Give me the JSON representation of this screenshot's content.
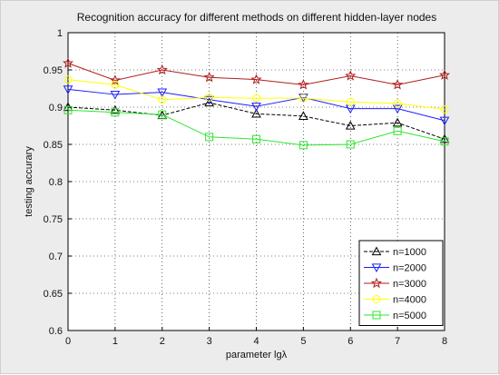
{
  "chart_data": {
    "type": "line",
    "title": "Recognition accuracy for different methods on different hidden-layer nodes",
    "xlabel": "parameter lgλ",
    "ylabel": "testing accurary",
    "xlim": [
      0,
      8
    ],
    "ylim": [
      0.6,
      1.0
    ],
    "x": [
      0,
      1,
      2,
      3,
      4,
      5,
      6,
      7,
      8
    ],
    "xticks": [
      "0",
      "1",
      "2",
      "3",
      "4",
      "5",
      "6",
      "7",
      "8"
    ],
    "yticks": [
      "0.6",
      "0.65",
      "0.7",
      "0.75",
      "0.8",
      "0.85",
      "0.9",
      "0.95",
      "1"
    ],
    "grid": true,
    "legend_position": "bottom-right",
    "series": [
      {
        "name": "n=1000",
        "values": [
          0.9,
          0.896,
          0.889,
          0.906,
          0.891,
          0.888,
          0.875,
          0.879,
          0.857
        ],
        "color": "#000000",
        "dash": true,
        "marker": "triangle-up"
      },
      {
        "name": "n=2000",
        "values": [
          0.924,
          0.917,
          0.92,
          0.91,
          0.901,
          0.913,
          0.898,
          0.898,
          0.882
        ],
        "color": "#1c1cff",
        "dash": false,
        "marker": "triangle-down"
      },
      {
        "name": "n=3000",
        "values": [
          0.959,
          0.936,
          0.95,
          0.94,
          0.937,
          0.93,
          0.942,
          0.93,
          0.943
        ],
        "color": "#b01c1c",
        "dash": false,
        "marker": "star"
      },
      {
        "name": "n=4000",
        "values": [
          0.937,
          0.93,
          0.91,
          0.913,
          0.912,
          0.912,
          0.907,
          0.905,
          0.897
        ],
        "color": "#ffff00",
        "dash": false,
        "marker": "circle"
      },
      {
        "name": "n=5000",
        "values": [
          0.896,
          0.893,
          0.89,
          0.86,
          0.857,
          0.849,
          0.85,
          0.868,
          0.854
        ],
        "color": "#2ee62e",
        "dash": false,
        "marker": "square"
      }
    ]
  }
}
